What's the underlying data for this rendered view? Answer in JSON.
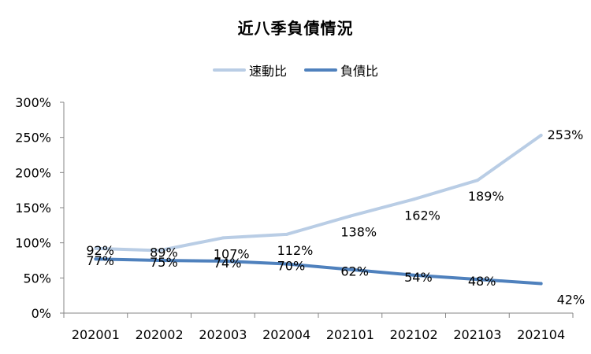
{
  "chart_data": {
    "type": "line",
    "title": "近八季負債情況",
    "categories": [
      "202001",
      "202002",
      "202003",
      "202004",
      "202101",
      "202102",
      "202103",
      "202104"
    ],
    "yticks": [
      "0%",
      "50%",
      "100%",
      "150%",
      "200%",
      "250%",
      "300%"
    ],
    "ylim": [
      0,
      300
    ],
    "grid": false,
    "legend_position": "top-center",
    "series": [
      {
        "name": "速動比",
        "color": "#b9cde5",
        "values": [
          92,
          89,
          107,
          112,
          138,
          162,
          189,
          253
        ],
        "labels": [
          "92%",
          "89%",
          "107%",
          "112%",
          "138%",
          "162%",
          "189%",
          "253%"
        ]
      },
      {
        "name": "負債比",
        "color": "#4f81bd",
        "values": [
          77,
          75,
          74,
          70,
          62,
          54,
          48,
          42
        ],
        "labels": [
          "77%",
          "75%",
          "74%",
          "70%",
          "62%",
          "54%",
          "48%",
          "42%"
        ]
      }
    ]
  }
}
